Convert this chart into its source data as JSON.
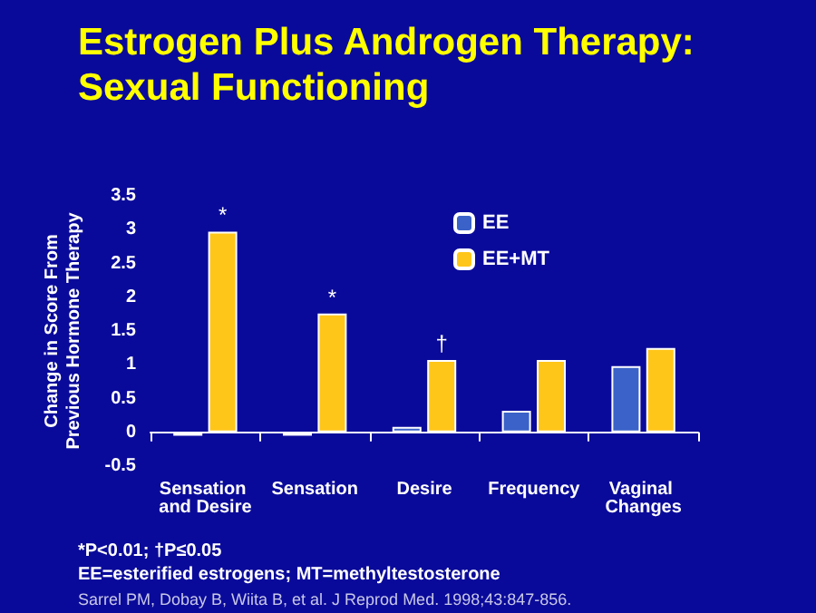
{
  "chart_data": {
    "type": "bar",
    "title": "Estrogen Plus Androgen Therapy:\nSexual Functioning",
    "ylabel": "Change in Score From\nPrevious Hormone Therapy",
    "categories": [
      "Sensation and Desire",
      "Sensation",
      "Desire",
      "Frequency",
      "Vaginal Changes"
    ],
    "series": [
      {
        "name": "EE",
        "color": "#3a62c8",
        "values": [
          -0.05,
          -0.05,
          0.08,
          0.32,
          0.98
        ]
      },
      {
        "name": "EE+MT",
        "color": "#ffc61a",
        "values": [
          2.97,
          1.76,
          1.07,
          1.07,
          1.25
        ]
      }
    ],
    "ylim": [
      -0.5,
      3.5
    ],
    "yticks": [
      -0.5,
      0,
      0.5,
      1,
      1.5,
      2,
      2.5,
      3,
      3.5
    ],
    "grid": false,
    "legend": "top right",
    "annotations": [
      {
        "text": "*",
        "x": "Sensation and Desire",
        "y": 2.97
      },
      {
        "text": "*",
        "x": "Sensation",
        "y": 1.76
      },
      {
        "text": "†",
        "x": "Desire",
        "y": 1.07
      },
      "*P<0.01; †P≤0.05",
      "EE=esterified estrogens; MT=methyltestosterone",
      "Sarrel PM, Dobay B, Wiita B, et al. J Reprod Med. 1998;43:847-856."
    ]
  }
}
